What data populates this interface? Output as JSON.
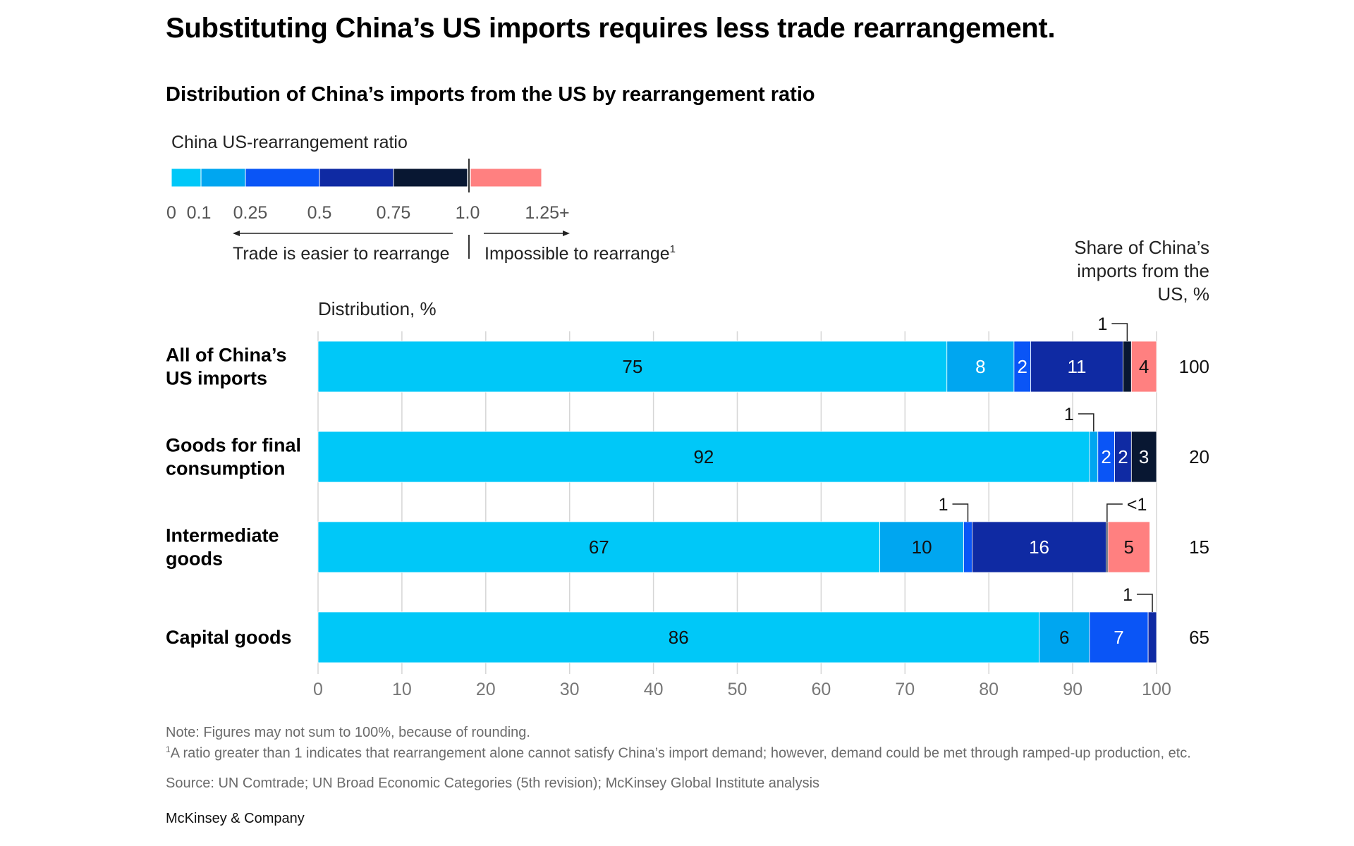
{
  "title": "Substituting China’s US imports requires less trade rearrangement.",
  "subtitle": "Distribution of China’s imports from the US by rearrangement ratio",
  "legend": {
    "title": "China US-rearrangement ratio",
    "colors": [
      "#00c8f8",
      "#00a6f0",
      "#0a55f6",
      "#0f2aa3",
      "#081732",
      "#ff8080"
    ],
    "tick_labels": [
      "0",
      "0.1",
      "0.25",
      "0.5",
      "0.75",
      "1.0",
      "1.25+"
    ],
    "easier_label": "Trade is easier to rearrange",
    "impossible_label": "Impossible to rearrange",
    "impossible_sup": "1"
  },
  "chart_data": {
    "type": "bar",
    "orientation": "horizontal",
    "stacked": true,
    "xlabel": "Distribution, %",
    "xlim": [
      0,
      100
    ],
    "xticks": [
      0,
      10,
      20,
      30,
      40,
      50,
      60,
      70,
      80,
      90,
      100
    ],
    "share_header": [
      "Share of China’s",
      "imports from the",
      "US, %"
    ],
    "categories": [
      [
        "All of China’s",
        "US imports"
      ],
      [
        "Goods for final",
        "consumption"
      ],
      [
        "Intermediate",
        "goods"
      ],
      [
        "Capital goods"
      ]
    ],
    "series": [
      {
        "name": "0–0.1",
        "color": "#00c8f8",
        "values": [
          75,
          92,
          67,
          86
        ],
        "labels": [
          "75",
          "92",
          "67",
          "86"
        ]
      },
      {
        "name": "0.1–0.25",
        "color": "#00a6f0",
        "values": [
          8,
          1,
          10,
          6
        ],
        "labels": [
          "8",
          "1",
          "10",
          "6"
        ]
      },
      {
        "name": "0.25–0.5",
        "color": "#0a55f6",
        "values": [
          2,
          2,
          1,
          7
        ],
        "labels": [
          "2",
          "2",
          "1",
          "7"
        ]
      },
      {
        "name": "0.5–0.75",
        "color": "#0f2aa3",
        "values": [
          11,
          2,
          16,
          1
        ],
        "labels": [
          "11",
          "2",
          "16",
          "1"
        ]
      },
      {
        "name": "0.75–1.0",
        "color": "#081732",
        "values": [
          1,
          3,
          0.2,
          0
        ],
        "labels": [
          "1",
          "3",
          "<1",
          ""
        ]
      },
      {
        "name": "1.25+",
        "color": "#ff8080",
        "values": [
          4,
          0.5,
          5,
          0
        ],
        "labels": [
          "4",
          "",
          "5",
          ""
        ]
      }
    ],
    "share": [
      "100",
      "20",
      "15",
      "65"
    ],
    "callouts": [
      {
        "row": 0,
        "series": 4,
        "label": "1",
        "side": "left"
      },
      {
        "row": 1,
        "series": 1,
        "label": "1",
        "side": "left"
      },
      {
        "row": 2,
        "series": 2,
        "label": "1",
        "side": "left"
      },
      {
        "row": 2,
        "series": 4,
        "label": "<1",
        "side": "right"
      },
      {
        "row": 3,
        "series": 3,
        "label": "1",
        "side": "left"
      }
    ]
  },
  "notes": [
    "Note: Figures may not sum to 100%, because of rounding.",
    "A ratio greater than 1 indicates that rearrangement alone cannot satisfy China’s import demand; however, demand could be met through ramped-up production, etc.",
    "Source: UN Comtrade; UN Broad Economic Categories (5th revision); McKinsey Global Institute analysis"
  ],
  "note_sup": "1",
  "brand": "McKinsey & Company"
}
